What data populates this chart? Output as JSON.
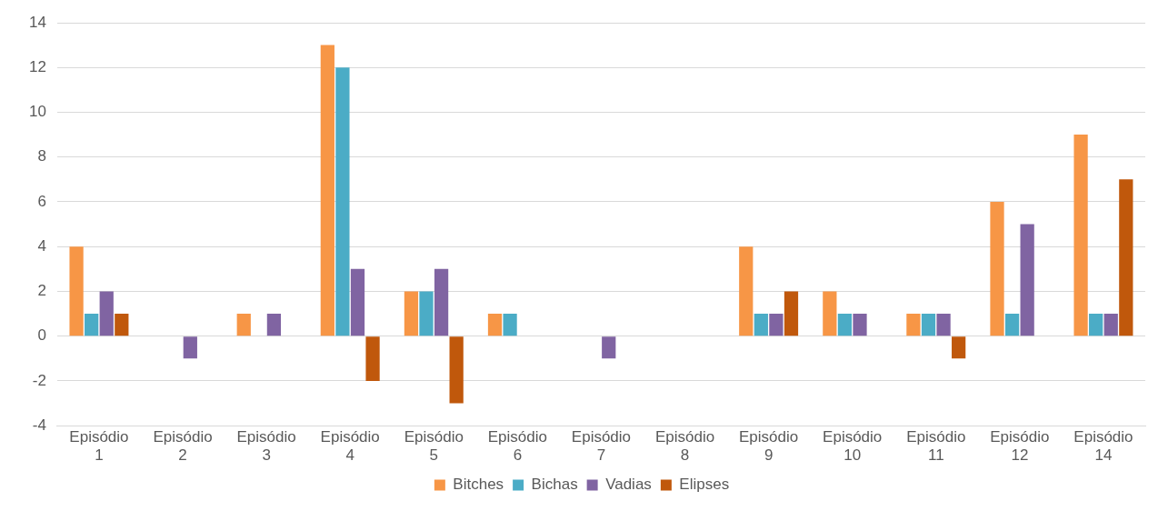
{
  "chart_data": {
    "type": "bar",
    "categories": [
      "Episódio 1",
      "Episódio 2",
      "Episódio 3",
      "Episódio 4",
      "Episódio 5",
      "Episódio 6",
      "Episódio 7",
      "Episódio 8",
      "Episódio 9",
      "Episódio 10",
      "Episódio 11",
      "Episódio 12",
      "Episódio 14"
    ],
    "series": [
      {
        "name": "Bitches",
        "color": "#f79646",
        "values": [
          4,
          0,
          1,
          13,
          2,
          1,
          0,
          0,
          4,
          2,
          1,
          6,
          9
        ]
      },
      {
        "name": "Bichas",
        "color": "#4bacc6",
        "values": [
          1,
          0,
          0,
          12,
          2,
          1,
          0,
          0,
          1,
          1,
          1,
          1,
          1
        ]
      },
      {
        "name": "Vadias",
        "color": "#8064a2",
        "values": [
          2,
          -1,
          1,
          3,
          3,
          0,
          -1,
          0,
          1,
          1,
          1,
          5,
          1
        ]
      },
      {
        "name": "Elipses",
        "color": "#c0580c",
        "values": [
          1,
          0,
          0,
          -2,
          -3,
          0,
          0,
          0,
          2,
          0,
          -1,
          0,
          7
        ]
      }
    ],
    "ylim": [
      -4,
      14
    ],
    "yticks": [
      -4,
      -2,
      0,
      2,
      4,
      6,
      8,
      10,
      12,
      14
    ],
    "grid": "y",
    "legend": "bottom"
  }
}
